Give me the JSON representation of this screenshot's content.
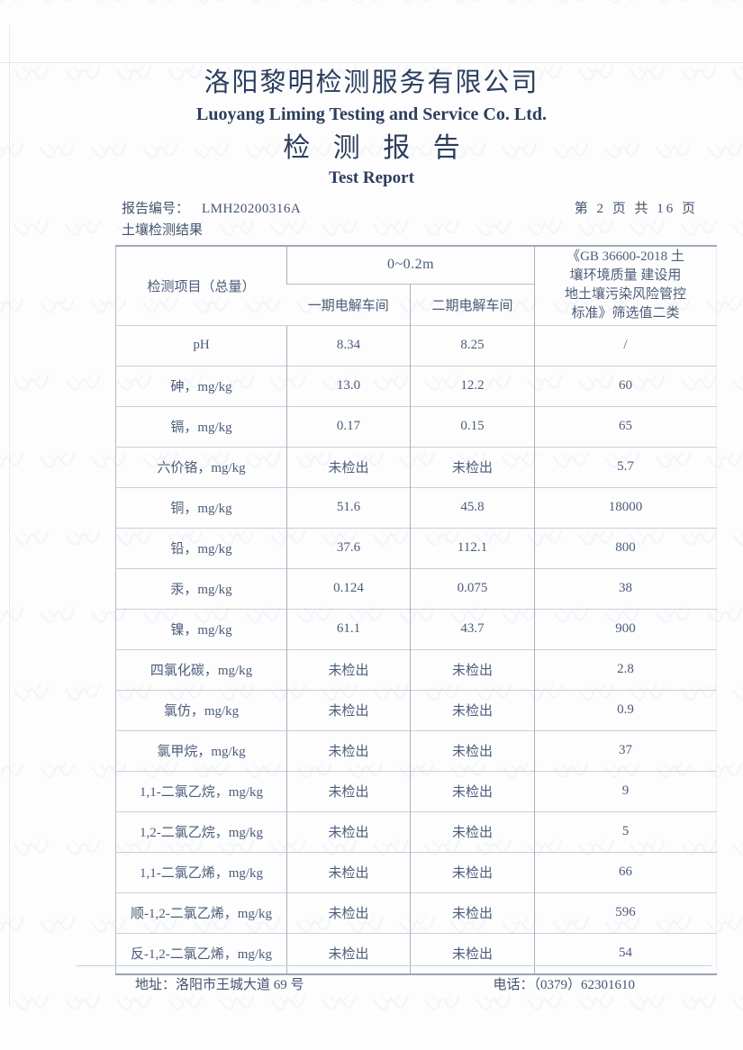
{
  "page": {
    "company_name_cn": "洛阳黎明检测服务有限公司",
    "company_name_en": "Luoyang Liming Testing and Service Co. Ltd.",
    "report_title_cn": "检 测 报 告",
    "report_title_en": "Test Report",
    "report_no_label": "报告编号：",
    "report_no": "LMH20200316A",
    "page_indicator": "第 2 页 共 16 页",
    "section_title": "土壤检测结果"
  },
  "table": {
    "header": {
      "item_col": "检测项目（总量）",
      "depth_group": "0~0.2m",
      "sub_col_1": "一期电解车间",
      "sub_col_2": "二期电解车间",
      "standard_col": "《GB 36600-2018 土\n壤环境质量 建设用\n地土壤污染风险管控\n标准》筛选值二类"
    },
    "rows": [
      {
        "item": "pH",
        "v1": "8.34",
        "v2": "8.25",
        "limit": "/"
      },
      {
        "item": "砷，mg/kg",
        "v1": "13.0",
        "v2": "12.2",
        "limit": "60"
      },
      {
        "item": "镉，mg/kg",
        "v1": "0.17",
        "v2": "0.15",
        "limit": "65"
      },
      {
        "item": "六价铬，mg/kg",
        "v1": "未检出",
        "v2": "未检出",
        "limit": "5.7"
      },
      {
        "item": "铜，mg/kg",
        "v1": "51.6",
        "v2": "45.8",
        "limit": "18000"
      },
      {
        "item": "铅，mg/kg",
        "v1": "37.6",
        "v2": "112.1",
        "limit": "800"
      },
      {
        "item": "汞，mg/kg",
        "v1": "0.124",
        "v2": "0.075",
        "limit": "38"
      },
      {
        "item": "镍，mg/kg",
        "v1": "61.1",
        "v2": "43.7",
        "limit": "900"
      },
      {
        "item": "四氯化碳，mg/kg",
        "v1": "未检出",
        "v2": "未检出",
        "limit": "2.8"
      },
      {
        "item": "氯仿，mg/kg",
        "v1": "未检出",
        "v2": "未检出",
        "limit": "0.9"
      },
      {
        "item": "氯甲烷，mg/kg",
        "v1": "未检出",
        "v2": "未检出",
        "limit": "37"
      },
      {
        "item": "1,1-二氯乙烷，mg/kg",
        "v1": "未检出",
        "v2": "未检出",
        "limit": "9"
      },
      {
        "item": "1,2-二氯乙烷，mg/kg",
        "v1": "未检出",
        "v2": "未检出",
        "limit": "5"
      },
      {
        "item": "1,1-二氯乙烯，mg/kg",
        "v1": "未检出",
        "v2": "未检出",
        "limit": "66"
      },
      {
        "item": "顺-1,2-二氯乙烯，mg/kg",
        "v1": "未检出",
        "v2": "未检出",
        "limit": "596"
      },
      {
        "item": "反-1,2-二氯乙烯，mg/kg",
        "v1": "未检出",
        "v2": "未检出",
        "limit": "54"
      }
    ]
  },
  "footer": {
    "address": "地址：洛阳市王城大道 69 号",
    "phone": "电话：（0379）62301610"
  },
  "colors": {
    "ink": "#46566f",
    "title_ink": "#2c3e5d",
    "table_line": "#a8b0be",
    "watermark": "#8aa0c4"
  }
}
